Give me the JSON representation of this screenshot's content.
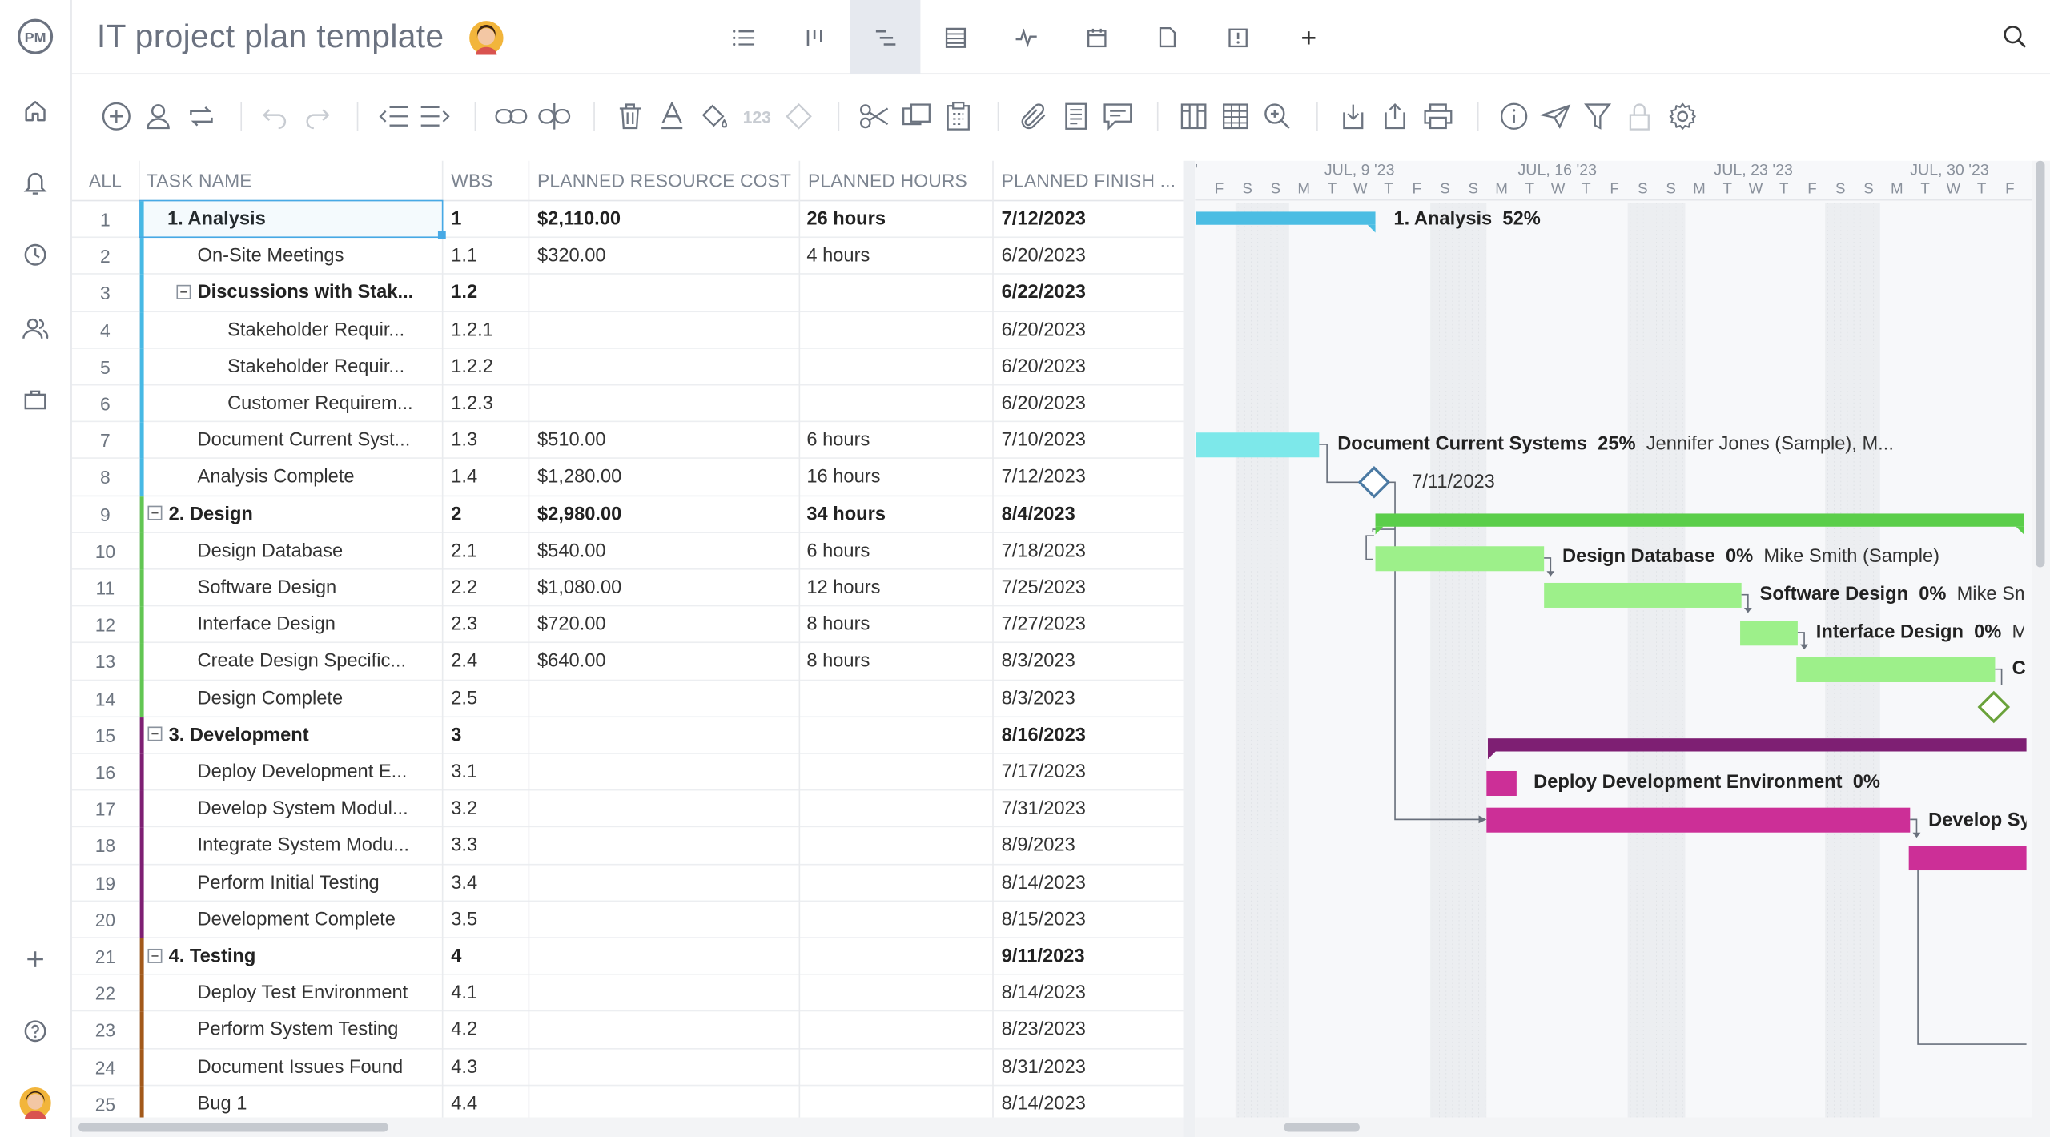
{
  "app": {
    "logo": "PM"
  },
  "project": {
    "title": "IT project plan template"
  },
  "rail": [
    "home-icon",
    "notifications-icon",
    "history-icon",
    "people-icon",
    "portfolio-icon",
    "add-icon",
    "help-icon",
    "user-avatar"
  ],
  "views": [
    "list-view",
    "board-view",
    "gantt-view",
    "sheet-view",
    "dashboard-view",
    "calendar-view",
    "files-view",
    "risks-view",
    "add-view"
  ],
  "toolbar": {
    "numbers_label": "123"
  },
  "columns": {
    "all": "ALL",
    "task_name": "TASK NAME",
    "wbs": "WBS",
    "cost": "PLANNED RESOURCE COST",
    "hours": "PLANNED HOURS",
    "finish": "PLANNED FINISH ..."
  },
  "rows": [
    {
      "num": "1",
      "name": "1. Analysis",
      "wbs": "1",
      "cost": "$2,110.00",
      "hours": "26 hours",
      "finish": "7/12/2023",
      "level": 0,
      "bold": true,
      "group": "analysis"
    },
    {
      "num": "2",
      "name": "On-Site Meetings",
      "wbs": "1.1",
      "cost": "$320.00",
      "hours": "4 hours",
      "finish": "6/20/2023",
      "level": 1,
      "bold": false,
      "group": "analysis"
    },
    {
      "num": "3",
      "name": "Discussions with Stak...",
      "wbs": "1.2",
      "cost": "",
      "hours": "",
      "finish": "6/22/2023",
      "level": 1,
      "bold": true,
      "collapse": true,
      "group": "analysis"
    },
    {
      "num": "4",
      "name": "Stakeholder Requir...",
      "wbs": "1.2.1",
      "cost": "",
      "hours": "",
      "finish": "6/20/2023",
      "level": 2,
      "bold": false,
      "group": "analysis"
    },
    {
      "num": "5",
      "name": "Stakeholder Requir...",
      "wbs": "1.2.2",
      "cost": "",
      "hours": "",
      "finish": "6/20/2023",
      "level": 2,
      "bold": false,
      "group": "analysis"
    },
    {
      "num": "6",
      "name": "Customer Requirem...",
      "wbs": "1.2.3",
      "cost": "",
      "hours": "",
      "finish": "6/20/2023",
      "level": 2,
      "bold": false,
      "group": "analysis"
    },
    {
      "num": "7",
      "name": "Document Current Syst...",
      "wbs": "1.3",
      "cost": "$510.00",
      "hours": "6 hours",
      "finish": "7/10/2023",
      "level": 1,
      "bold": false,
      "group": "analysis"
    },
    {
      "num": "8",
      "name": "Analysis Complete",
      "wbs": "1.4",
      "cost": "$1,280.00",
      "hours": "16 hours",
      "finish": "7/12/2023",
      "level": 1,
      "bold": false,
      "group": "analysis"
    },
    {
      "num": "9",
      "name": "2. Design",
      "wbs": "2",
      "cost": "$2,980.00",
      "hours": "34 hours",
      "finish": "8/4/2023",
      "level": 0,
      "bold": true,
      "collapse": true,
      "group": "design"
    },
    {
      "num": "10",
      "name": "Design Database",
      "wbs": "2.1",
      "cost": "$540.00",
      "hours": "6 hours",
      "finish": "7/18/2023",
      "level": 1,
      "bold": false,
      "group": "design"
    },
    {
      "num": "11",
      "name": "Software Design",
      "wbs": "2.2",
      "cost": "$1,080.00",
      "hours": "12 hours",
      "finish": "7/25/2023",
      "level": 1,
      "bold": false,
      "group": "design"
    },
    {
      "num": "12",
      "name": "Interface Design",
      "wbs": "2.3",
      "cost": "$720.00",
      "hours": "8 hours",
      "finish": "7/27/2023",
      "level": 1,
      "bold": false,
      "group": "design"
    },
    {
      "num": "13",
      "name": "Create Design Specific...",
      "wbs": "2.4",
      "cost": "$640.00",
      "hours": "8 hours",
      "finish": "8/3/2023",
      "level": 1,
      "bold": false,
      "group": "design"
    },
    {
      "num": "14",
      "name": "Design Complete",
      "wbs": "2.5",
      "cost": "",
      "hours": "",
      "finish": "8/3/2023",
      "level": 1,
      "bold": false,
      "group": "design"
    },
    {
      "num": "15",
      "name": "3. Development",
      "wbs": "3",
      "cost": "",
      "hours": "",
      "finish": "8/16/2023",
      "level": 0,
      "bold": true,
      "collapse": true,
      "group": "dev"
    },
    {
      "num": "16",
      "name": "Deploy Development E...",
      "wbs": "3.1",
      "cost": "",
      "hours": "",
      "finish": "7/17/2023",
      "level": 1,
      "bold": false,
      "group": "dev"
    },
    {
      "num": "17",
      "name": "Develop System Modul...",
      "wbs": "3.2",
      "cost": "",
      "hours": "",
      "finish": "7/31/2023",
      "level": 1,
      "bold": false,
      "group": "dev"
    },
    {
      "num": "18",
      "name": "Integrate System Modu...",
      "wbs": "3.3",
      "cost": "",
      "hours": "",
      "finish": "8/9/2023",
      "level": 1,
      "bold": false,
      "group": "dev"
    },
    {
      "num": "19",
      "name": "Perform Initial Testing",
      "wbs": "3.4",
      "cost": "",
      "hours": "",
      "finish": "8/14/2023",
      "level": 1,
      "bold": false,
      "group": "dev"
    },
    {
      "num": "20",
      "name": "Development Complete",
      "wbs": "3.5",
      "cost": "",
      "hours": "",
      "finish": "8/15/2023",
      "level": 1,
      "bold": false,
      "group": "dev"
    },
    {
      "num": "21",
      "name": "4. Testing",
      "wbs": "4",
      "cost": "",
      "hours": "",
      "finish": "9/11/2023",
      "level": 0,
      "bold": true,
      "collapse": true,
      "group": "test"
    },
    {
      "num": "22",
      "name": "Deploy Test Environment",
      "wbs": "4.1",
      "cost": "",
      "hours": "",
      "finish": "8/14/2023",
      "level": 1,
      "bold": false,
      "group": "test"
    },
    {
      "num": "23",
      "name": "Perform System Testing",
      "wbs": "4.2",
      "cost": "",
      "hours": "",
      "finish": "8/23/2023",
      "level": 1,
      "bold": false,
      "group": "test"
    },
    {
      "num": "24",
      "name": "Document Issues Found",
      "wbs": "4.3",
      "cost": "",
      "hours": "",
      "finish": "8/31/2023",
      "level": 1,
      "bold": false,
      "group": "test"
    },
    {
      "num": "25",
      "name": "Bug 1",
      "wbs": "4.4",
      "cost": "",
      "hours": "",
      "finish": "8/14/2023",
      "level": 1,
      "bold": false,
      "group": "test"
    }
  ],
  "group_colors": {
    "analysis": "#47b9e5",
    "design": "#62c653",
    "dev": "#7e1f73",
    "test": "#a2591a"
  },
  "gantt": {
    "weeks": [
      "JUL, 9 '23",
      "JUL, 16 '23",
      "JUL, 23 '23",
      "JUL, 30 '23"
    ],
    "day_letters": [
      "F",
      "S",
      "S",
      "M",
      "T",
      "W",
      "T",
      "F",
      "S",
      "S",
      "M",
      "T",
      "W",
      "T",
      "F",
      "S",
      "S",
      "M",
      "T",
      "W",
      "T",
      "F",
      "S",
      "S",
      "M",
      "T",
      "W",
      "T",
      "F"
    ],
    "labels": {
      "analysis": {
        "name": "1. Analysis",
        "pct": "52%"
      },
      "doc_current": {
        "name": "Document Current Systems",
        "pct": "25%",
        "res": "Jennifer Jones (Sample), M..."
      },
      "milestone_date": "7/11/2023",
      "design_db": {
        "name": "Design Database",
        "pct": "0%",
        "res": "Mike Smith (Sample)"
      },
      "software": {
        "name": "Software Design",
        "pct": "0%",
        "res": "Mike Sm"
      },
      "interface": {
        "name": "Interface Design",
        "pct": "0%",
        "res": "M"
      },
      "create_spec": {
        "name": "C"
      },
      "deploy_dev": {
        "name": "Deploy Development Environment",
        "pct": "0%"
      },
      "develop_sys": {
        "name": "Develop Sy"
      }
    },
    "colors": {
      "analysis": "#4bbde3",
      "doc": "#7de8ea",
      "design_sum": "#5bce4a",
      "design_task": "#9df08a",
      "dev_sum": "#7e1f73",
      "dev_task": "#cc2f97",
      "milestone_blue": "#4b7aa3",
      "milestone_green": "#6aa23a"
    }
  }
}
